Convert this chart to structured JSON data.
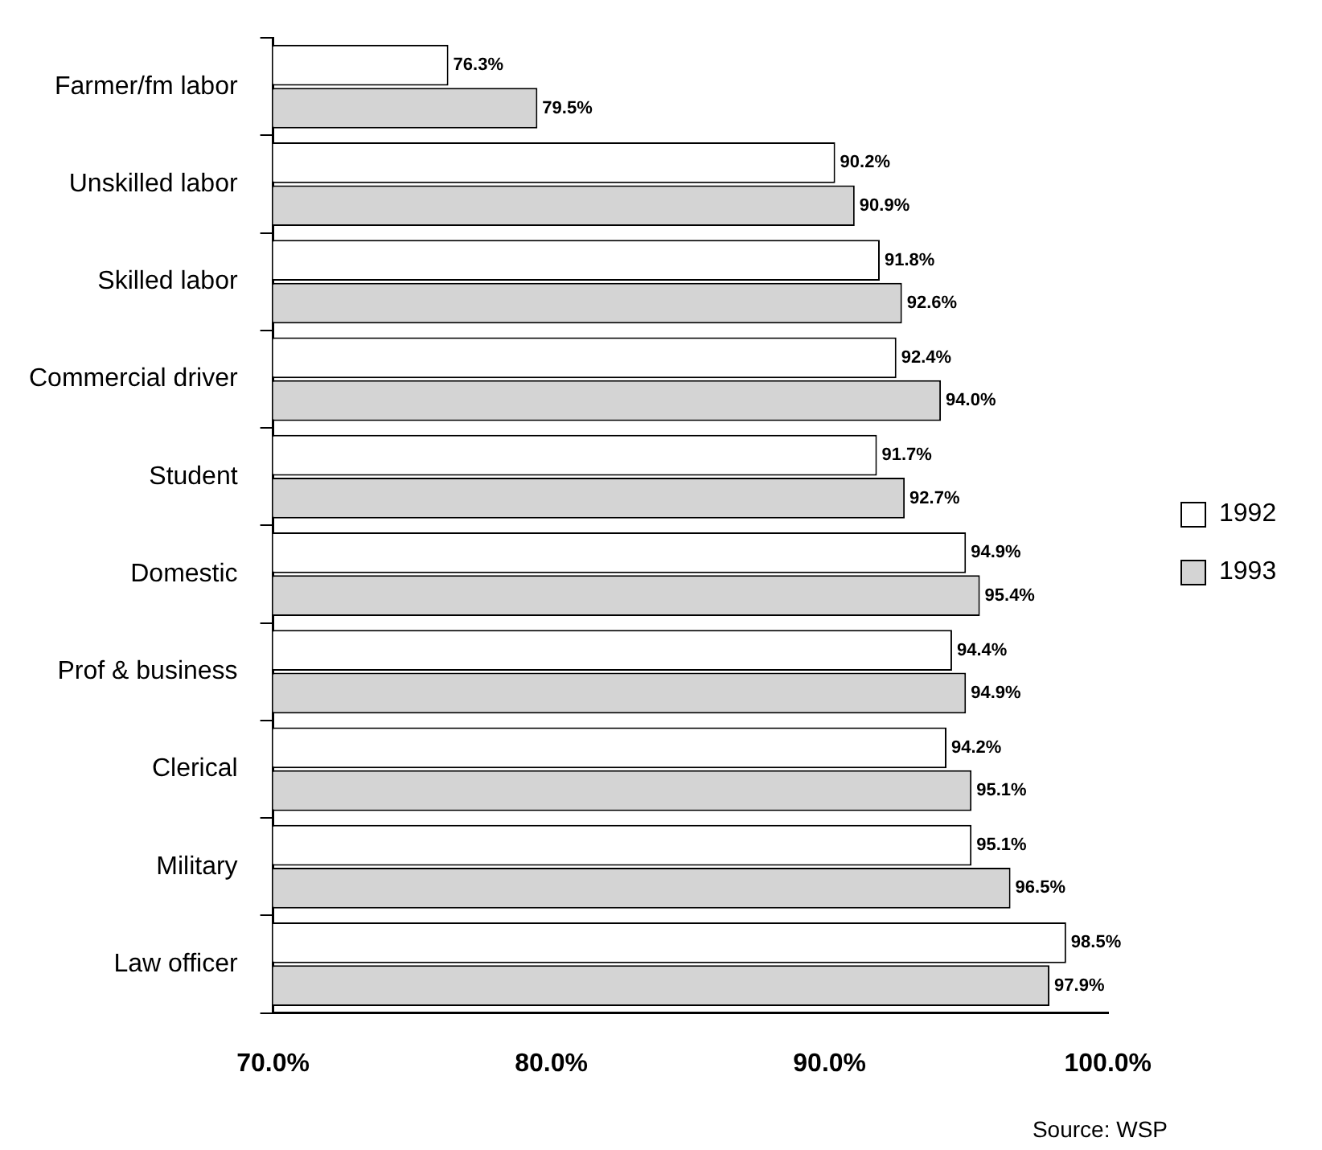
{
  "chart_data": {
    "type": "bar",
    "orientation": "horizontal",
    "categories": [
      "Farmer/fm labor",
      "Unskilled labor",
      "Skilled labor",
      "Commercial driver",
      "Student",
      "Domestic",
      "Prof & business",
      "Clerical",
      "Military",
      "Law officer"
    ],
    "series": [
      {
        "name": "1992",
        "color": "#ffffff",
        "values": [
          76.3,
          90.2,
          91.8,
          92.4,
          91.7,
          94.9,
          94.4,
          94.2,
          95.1,
          98.5
        ],
        "value_labels": [
          "76.3%",
          "90.2%",
          "91.8%",
          "92.4%",
          "91.7%",
          "94.9%",
          "94.4%",
          "94.2%",
          "95.1%",
          "98.5%"
        ]
      },
      {
        "name": "1993",
        "color": "#d4d4d4",
        "values": [
          79.5,
          90.9,
          92.6,
          94.0,
          92.7,
          95.4,
          94.9,
          95.1,
          96.5,
          97.9
        ],
        "value_labels": [
          "79.5%",
          "90.9%",
          "92.6%",
          "94.0%",
          "92.7%",
          "95.4%",
          "94.9%",
          "95.1%",
          "96.5%",
          "97.9%"
        ]
      }
    ],
    "xlim": [
      70,
      100
    ],
    "xticks": [
      {
        "value": 70,
        "label": "70.0%"
      },
      {
        "value": 80,
        "label": "80.0%"
      },
      {
        "value": 90,
        "label": "90.0%"
      },
      {
        "value": 100,
        "label": "100.0%"
      }
    ],
    "legend": "right",
    "annotations": [
      "Source: WSP"
    ]
  }
}
